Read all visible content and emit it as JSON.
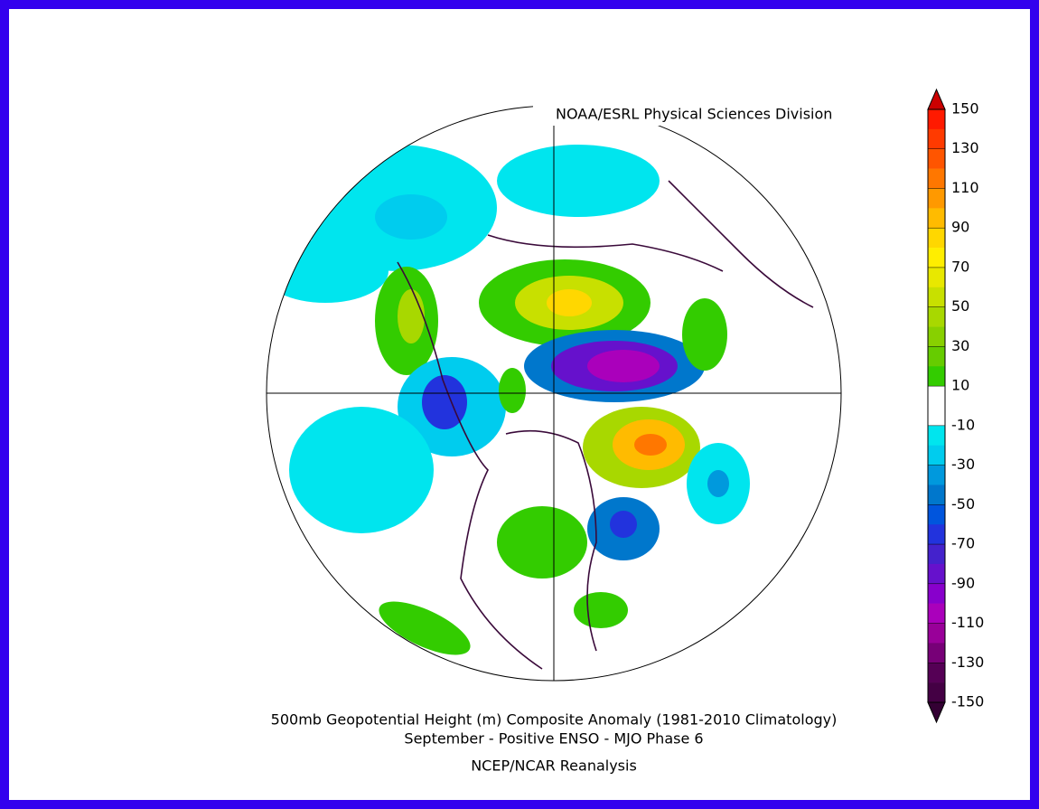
{
  "credit": "NOAA/ESRL Physical Sciences Division",
  "caption": {
    "line1": "500mb Geopotential Height (m) Composite Anomaly (1981-2010 Climatology)",
    "line2": "September - Positive ENSO - MJO Phase 6",
    "source": "NCEP/NCAR Reanalysis"
  },
  "colorbar": {
    "ticks": [
      150,
      130,
      110,
      90,
      70,
      50,
      30,
      10,
      -10,
      -30,
      -50,
      -70,
      -90,
      -110,
      -130,
      -150
    ],
    "colors": [
      "#ff1a00",
      "#ff3a00",
      "#ff5500",
      "#ff7700",
      "#ff9900",
      "#ffbb00",
      "#ffd700",
      "#ffee00",
      "#e8e800",
      "#c8e000",
      "#a8d800",
      "#88d000",
      "#66cc00",
      "#33cc00",
      "#ffffff",
      "#ffffff",
      "#00e5ee",
      "#00ccee",
      "#0099dd",
      "#0077cc",
      "#0055dd",
      "#2233dd",
      "#4422cc",
      "#6611cc",
      "#8800cc",
      "#aa00bb",
      "#990099",
      "#770077",
      "#550055",
      "#440044"
    ],
    "over_color": "#cc0000",
    "under_color": "#330033"
  }
}
